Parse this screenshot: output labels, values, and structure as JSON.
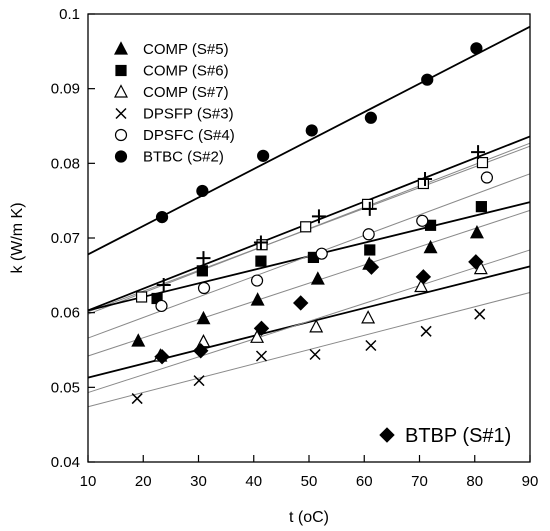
{
  "chart_data": {
    "type": "scatter",
    "title": "",
    "xlabel": "t (oC)",
    "ylabel": "k (W/m K)",
    "xlim": [
      10,
      90
    ],
    "ylim": [
      0.04,
      0.1
    ],
    "xticks": [
      "10",
      "20",
      "30",
      "40",
      "50",
      "60",
      "70",
      "80",
      "90"
    ],
    "yticks": [
      "0.04",
      "0.05",
      "0.06",
      "0.07",
      "0.08",
      "0.09",
      "0.1"
    ],
    "grid": false,
    "legend_position": "top-left",
    "series": [
      {
        "name": "COMP (S#5)",
        "marker": "triangle-filled",
        "x": [
          19.1,
          30.9,
          40.7,
          51.6,
          60.9,
          72,
          80.4
        ],
        "y": [
          0.0562,
          0.0592,
          0.0617,
          0.0645,
          0.0665,
          0.0687,
          0.0707
        ]
      },
      {
        "name": "COMP (S#6)",
        "marker": "square-filled",
        "x": [
          22.5,
          30.7,
          41.3,
          50.8,
          61,
          72,
          81.2
        ],
        "y": [
          0.0619,
          0.0656,
          0.0669,
          0.0674,
          0.0684,
          0.0717,
          0.0742
        ]
      },
      {
        "name": "COMP (S#7)",
        "marker": "triangle-open",
        "x": [
          23.1,
          30.9,
          40.6,
          51.3,
          60.7,
          70.3,
          81.1
        ],
        "y": [
          0.0542,
          0.0561,
          0.0567,
          0.0581,
          0.0593,
          0.0635,
          0.0659
        ]
      },
      {
        "name": "DPSFP (S#3)",
        "marker": "x",
        "x": [
          18.9,
          30.1,
          41.4,
          51.1,
          61.2,
          71.2,
          80.9
        ],
        "y": [
          0.0485,
          0.0509,
          0.0542,
          0.0544,
          0.0556,
          0.0575,
          0.0598
        ]
      },
      {
        "name": "DPSFC (S#4)",
        "marker": "circle-open",
        "x": [
          23.3,
          31,
          40.6,
          52.3,
          60.8,
          70.5,
          82.2
        ],
        "y": [
          0.0609,
          0.0633,
          0.0643,
          0.0679,
          0.0705,
          0.0723,
          0.0781
        ]
      },
      {
        "name": "BTBC (S#2)",
        "marker": "circle-filled",
        "x": [
          23.4,
          30.7,
          41.7,
          50.5,
          61.2,
          71.4,
          80.3
        ],
        "y": [
          0.0728,
          0.0763,
          0.081,
          0.0844,
          0.0861,
          0.0912,
          0.0954
        ]
      },
      {
        "name": "BTBP (S#1)",
        "marker": "diamond-filled",
        "x": [
          23.4,
          30.4,
          41.4,
          48.5,
          61.3,
          70.7,
          80.2
        ],
        "y": [
          0.0541,
          0.0549,
          0.0579,
          0.0613,
          0.0661,
          0.0648,
          0.0668
        ]
      },
      {
        "name": "",
        "marker": "square-open",
        "x": [
          19.7,
          41.5,
          49.4,
          60.6,
          70.7,
          81.4
        ],
        "y": [
          0.0621,
          0.0691,
          0.0715,
          0.0745,
          0.0773,
          0.0801
        ]
      },
      {
        "name": "",
        "marker": "plus",
        "x": [
          23.7,
          30.9,
          41.3,
          51.8,
          61,
          71,
          80.6
        ],
        "y": [
          0.0637,
          0.0673,
          0.0694,
          0.0729,
          0.0739,
          0.0779,
          0.0815
        ]
      }
    ],
    "fit_lines": [
      {
        "style": "bold",
        "x": [
          10,
          90
        ],
        "y": [
          0.0678,
          0.0983
        ]
      },
      {
        "style": "bold",
        "x": [
          10,
          90
        ],
        "y": [
          0.0603,
          0.0836
        ]
      },
      {
        "style": "thin",
        "x": [
          10,
          90
        ],
        "y": [
          0.0598,
          0.0827
        ]
      },
      {
        "style": "thin",
        "x": [
          10,
          90
        ],
        "y": [
          0.0601,
          0.0823
        ]
      },
      {
        "style": "bold",
        "x": [
          10,
          90
        ],
        "y": [
          0.0603,
          0.0748
        ]
      },
      {
        "style": "thin",
        "x": [
          10,
          90
        ],
        "y": [
          0.0566,
          0.0786
        ]
      },
      {
        "style": "thin",
        "x": [
          10,
          90
        ],
        "y": [
          0.0542,
          0.0737
        ]
      },
      {
        "style": "bold",
        "x": [
          10,
          90
        ],
        "y": [
          0.0513,
          0.0662
        ]
      },
      {
        "style": "thin",
        "x": [
          10,
          90
        ],
        "y": [
          0.0493,
          0.0684
        ]
      },
      {
        "style": "thin",
        "x": [
          10,
          90
        ],
        "y": [
          0.0474,
          0.0627
        ]
      }
    ]
  }
}
